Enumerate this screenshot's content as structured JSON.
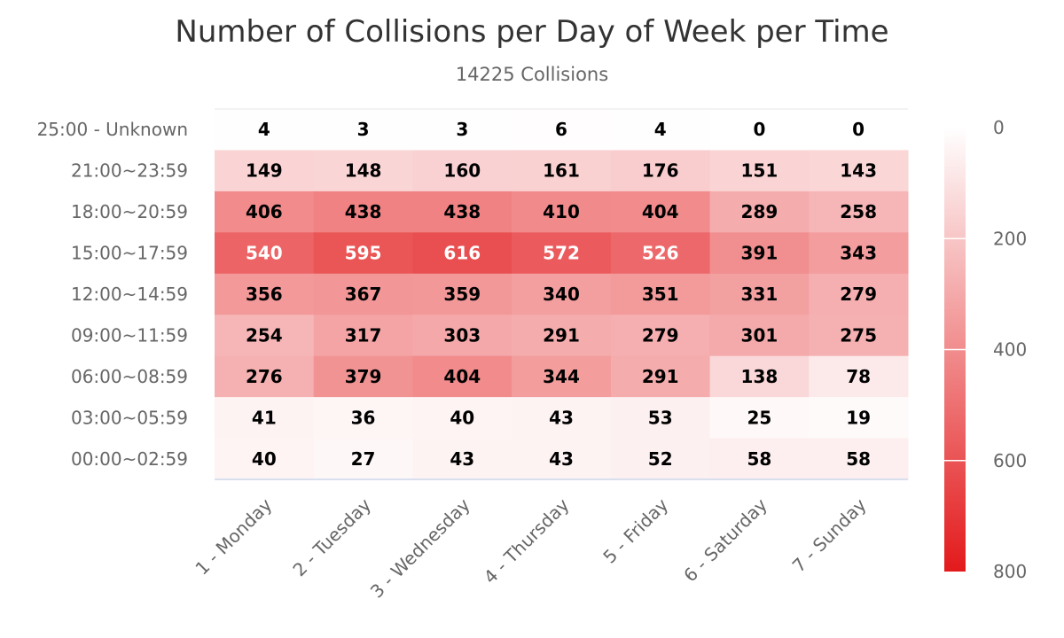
{
  "chart_data": {
    "type": "heatmap",
    "title": "Number of Collisions per Day of Week per Time",
    "subtitle": "14225 Collisions",
    "x_categories": [
      "1 - Monday",
      "2 - Tuesday",
      "3 - Wednesday",
      "4 - Thursday",
      "5 - Friday",
      "6 - Saturday",
      "7 - Sunday"
    ],
    "y_categories": [
      "25:00 - Unknown",
      "21:00~23:59",
      "18:00~20:59",
      "15:00~17:59",
      "12:00~14:59",
      "09:00~11:59",
      "06:00~08:59",
      "03:00~05:59",
      "00:00~02:59"
    ],
    "values": [
      [
        4,
        3,
        3,
        6,
        4,
        0,
        0
      ],
      [
        149,
        148,
        160,
        161,
        176,
        151,
        143
      ],
      [
        406,
        438,
        438,
        410,
        404,
        289,
        258
      ],
      [
        540,
        595,
        616,
        572,
        526,
        391,
        343
      ],
      [
        356,
        367,
        359,
        340,
        351,
        331,
        279
      ],
      [
        254,
        317,
        303,
        291,
        279,
        301,
        275
      ],
      [
        276,
        379,
        404,
        344,
        291,
        138,
        78
      ],
      [
        41,
        36,
        40,
        43,
        53,
        25,
        19
      ],
      [
        40,
        27,
        43,
        43,
        52,
        58,
        58
      ]
    ],
    "color_axis": {
      "min": 0,
      "max": 800,
      "min_color": "#ffffff",
      "max_color": "#e31a1c",
      "tick_labels": [
        "0",
        "200",
        "400",
        "600",
        "800"
      ],
      "tick_values": [
        0,
        200,
        400,
        600,
        800
      ]
    },
    "legend_position": "right",
    "grid": false
  }
}
